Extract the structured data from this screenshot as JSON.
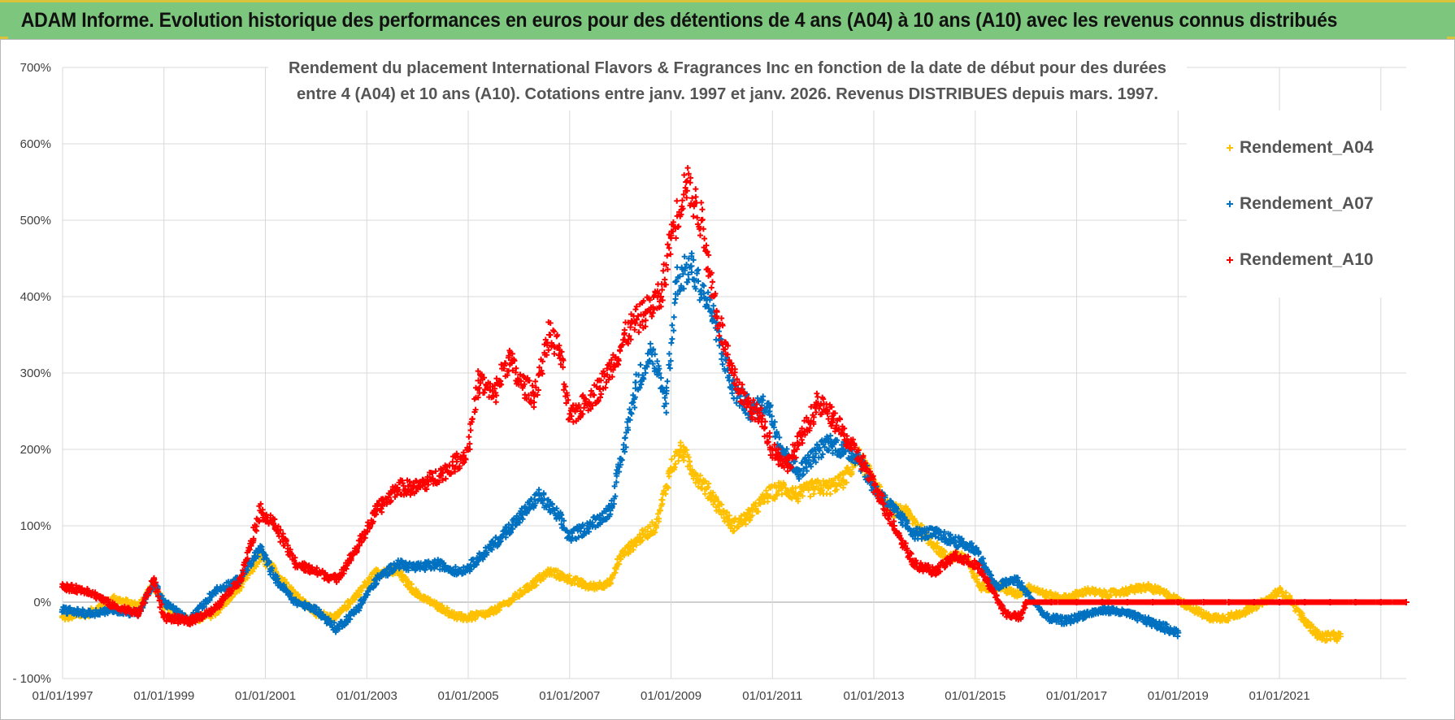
{
  "header": {
    "banner_title": "ADAM Informe. Evolution historique des performances en euros pour des détentions de 4 ans (A04) à 10 ans (A10) avec les revenus connus distribués"
  },
  "colors": {
    "banner_bg": "#7dc67d",
    "series_A04": "#ffc000",
    "series_A07": "#0070c0",
    "series_A10": "#ff0000",
    "grid": "#d9d9d9",
    "zero_line": "#bfbfbf"
  },
  "chart_data": {
    "type": "scatter",
    "title_line1": "Rendement du placement International Flavors & Fragrances Inc en fonction de la date de début pour des durées",
    "title_line2": "entre 4 (A04) et 10 ans (A10).  Cotations entre janv. 1997 et janv. 2026.  Revenus DISTRIBUES depuis mars. 1997.",
    "marker": "+",
    "ylim": [
      -100,
      700
    ],
    "y_tick_values": [
      -100,
      0,
      100,
      200,
      300,
      400,
      500,
      600,
      700
    ],
    "y_tick_labels": [
      "- 100%",
      "0%",
      "100%",
      "200%",
      "300%",
      "400%",
      "500%",
      "600%",
      "700%"
    ],
    "xlim": [
      1997.0,
      2023.5
    ],
    "x_tick_values": [
      1997,
      1999,
      2001,
      2003,
      2005,
      2007,
      2009,
      2011,
      2013,
      2015,
      2017,
      2019,
      2021
    ],
    "x_tick_labels": [
      "01/01/1997",
      "01/01/1999",
      "01/01/2001",
      "01/01/2003",
      "01/01/2005",
      "01/01/2007",
      "01/01/2009",
      "01/01/2011",
      "01/01/2013",
      "01/01/2015",
      "01/01/2017",
      "01/01/2019",
      "01/01/2021"
    ],
    "x_gridlines": [
      1999,
      2001,
      2003,
      2005,
      2007,
      2009,
      2011,
      2013,
      2015,
      2017,
      2019,
      2021,
      2023
    ],
    "legend_position": "top-right",
    "series": [
      {
        "name": "Rendement_A04",
        "x": [
          1997.0,
          1997.5,
          1998.0,
          1998.5,
          1998.8,
          1999.0,
          1999.5,
          2000.0,
          2000.5,
          2000.9,
          2001.2,
          2001.6,
          2002.0,
          2002.4,
          2002.8,
          2003.2,
          2003.6,
          2004.0,
          2004.4,
          2004.8,
          2005.0,
          2005.4,
          2005.8,
          2006.2,
          2006.6,
          2007.0,
          2007.4,
          2007.8,
          2008.0,
          2008.4,
          2008.7,
          2009.0,
          2009.2,
          2009.5,
          2009.8,
          2010.2,
          2010.5,
          2010.9,
          2011.2,
          2011.5,
          2011.8,
          2012.1,
          2012.4,
          2012.7,
          2013.0,
          2013.3,
          2013.6,
          2014.0,
          2014.4,
          2014.8,
          2015.1,
          2015.5,
          2015.8,
          2016.1,
          2016.4,
          2016.8,
          2017.2,
          2017.6,
          2018.0,
          2018.4,
          2018.8,
          2019.2,
          2019.6,
          2020.0,
          2020.4,
          2020.8,
          2021.0,
          2021.2,
          2021.5,
          2021.8,
          2022.2
        ],
        "values": [
          -20,
          -15,
          5,
          -5,
          25,
          -5,
          -25,
          -15,
          20,
          60,
          40,
          10,
          -15,
          -20,
          10,
          40,
          40,
          10,
          -5,
          -20,
          -20,
          -15,
          0,
          20,
          40,
          30,
          20,
          25,
          60,
          85,
          100,
          175,
          200,
          165,
          140,
          100,
          110,
          140,
          150,
          140,
          150,
          150,
          160,
          190,
          160,
          120,
          120,
          90,
          60,
          60,
          20,
          20,
          10,
          20,
          10,
          5,
          15,
          10,
          15,
          20,
          10,
          -5,
          -20,
          -20,
          -10,
          5,
          15,
          5,
          -25,
          -45,
          -45
        ]
      },
      {
        "name": "Rendement_A07",
        "x": [
          1997.0,
          1997.5,
          1998.0,
          1998.5,
          1998.8,
          1999.0,
          1999.5,
          2000.0,
          2000.5,
          2000.9,
          2001.2,
          2001.6,
          2002.0,
          2002.4,
          2002.8,
          2003.2,
          2003.6,
          2004.0,
          2004.4,
          2004.8,
          2005.0,
          2005.5,
          2006.0,
          2006.4,
          2006.8,
          2007.0,
          2007.4,
          2007.8,
          2008.0,
          2008.3,
          2008.6,
          2008.9,
          2009.1,
          2009.4,
          2009.8,
          2010.2,
          2010.6,
          2010.9,
          2011.2,
          2011.5,
          2011.8,
          2012.1,
          2012.4,
          2012.7,
          2013.0,
          2013.4,
          2013.8,
          2014.2,
          2014.6,
          2015.0,
          2015.4,
          2015.8,
          2016.1,
          2016.4,
          2016.8,
          2017.2,
          2017.6,
          2018.0,
          2018.4,
          2018.8,
          2019.0
        ],
        "values": [
          -10,
          -15,
          -10,
          -15,
          25,
          0,
          -25,
          15,
          30,
          70,
          30,
          0,
          -10,
          -35,
          -10,
          30,
          50,
          45,
          50,
          40,
          45,
          75,
          110,
          140,
          110,
          85,
          100,
          120,
          180,
          280,
          330,
          260,
          420,
          440,
          380,
          280,
          250,
          260,
          200,
          170,
          190,
          210,
          200,
          190,
          150,
          120,
          90,
          90,
          80,
          70,
          20,
          30,
          5,
          -20,
          -25,
          -15,
          -10,
          -15,
          -25,
          -35,
          -40
        ]
      },
      {
        "name": "Rendement_A10",
        "x": [
          1997.0,
          1997.5,
          1998.0,
          1998.5,
          1998.8,
          1999.0,
          1999.5,
          2000.0,
          2000.5,
          2000.9,
          2001.2,
          2001.6,
          2002.0,
          2002.4,
          2002.8,
          2003.2,
          2003.6,
          2004.0,
          2004.5,
          2004.9,
          2005.0,
          2005.2,
          2005.5,
          2005.8,
          2006.0,
          2006.3,
          2006.6,
          2006.8,
          2007.0,
          2007.3,
          2007.6,
          2007.9,
          2008.2,
          2008.5,
          2008.8,
          2009.0,
          2009.3,
          2009.6,
          2009.9,
          2010.2,
          2010.5,
          2010.8,
          2011.0,
          2011.3,
          2011.6,
          2011.9,
          2012.2,
          2012.5,
          2012.8,
          2013.1,
          2013.4,
          2013.8,
          2014.2,
          2014.6,
          2015.0,
          2015.3,
          2015.6,
          2015.9,
          2016.0,
          2016.5,
          2017.0,
          2017.5,
          2018.0,
          2018.5,
          2019.0,
          2019.5,
          2020.0,
          2020.5,
          2021.0,
          2021.5,
          2022.0,
          2022.5,
          2023.0,
          2023.5
        ],
        "values": [
          20,
          15,
          -5,
          -15,
          30,
          -20,
          -25,
          -10,
          30,
          120,
          100,
          50,
          40,
          30,
          70,
          120,
          150,
          150,
          170,
          190,
          200,
          290,
          270,
          320,
          290,
          270,
          350,
          330,
          240,
          260,
          280,
          320,
          360,
          380,
          400,
          480,
          550,
          500,
          380,
          300,
          260,
          240,
          200,
          180,
          220,
          260,
          240,
          210,
          180,
          140,
          100,
          50,
          40,
          60,
          50,
          20,
          -15,
          -20,
          0,
          0,
          0,
          0,
          0,
          0,
          0,
          0,
          0,
          0,
          0,
          0,
          0,
          0,
          0,
          0
        ]
      }
    ]
  }
}
